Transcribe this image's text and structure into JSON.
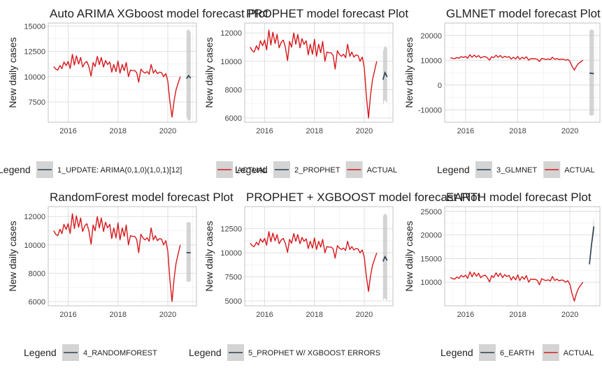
{
  "panels": [
    {
      "title": "Auto ARIMA XGboost model forecast Plot",
      "ylabel": "New daily cases",
      "xticks": [
        "2016",
        "2018",
        "2020"
      ],
      "yticks": [
        7500,
        10000,
        12500,
        15000
      ],
      "yrange": [
        5500,
        15300
      ],
      "legend": {
        "title": "Legend",
        "items": [
          "1_UPDATE: ARIMA(0,1,0)(1,0,1)[12]",
          "ACTUAL"
        ]
      },
      "forecast": {
        "x": [
          2020.75,
          2020.83,
          2020.92
        ],
        "y": [
          9800,
          10100,
          9850
        ],
        "lo": [
          6000,
          5600,
          5800
        ],
        "hi": [
          14500,
          14700,
          14400
        ]
      }
    },
    {
      "title": "PROPHET model forecast Plot",
      "ylabel": "New daily cases",
      "xticks": [
        "2016",
        "2018",
        "2020"
      ],
      "yticks": [
        6000,
        8000,
        10000,
        12000
      ],
      "yrange": [
        5700,
        12700
      ],
      "legend": {
        "title": "Legend",
        "items": [
          "2_PROPHET",
          "ACTUAL"
        ]
      },
      "forecast": {
        "x": [
          2020.75,
          2020.83,
          2020.92
        ],
        "y": [
          8700,
          9200,
          8900
        ],
        "lo": [
          6900,
          7300,
          7000
        ],
        "hi": [
          10700,
          11100,
          10900
        ]
      }
    },
    {
      "title": "GLMNET model forecast Plot",
      "ylabel": "New daily cases",
      "xticks": [
        "2016",
        "2018",
        "2020"
      ],
      "yticks": [
        -10000,
        0,
        10000,
        20000
      ],
      "yrange": [
        -15000,
        25000
      ],
      "legend": {
        "title": "Legend",
        "items": [
          "3_GLMNET",
          "ACTUAL"
        ]
      },
      "forecast": {
        "x": [
          2020.75,
          2020.83,
          2020.92
        ],
        "y": [
          4700,
          4800,
          4500
        ],
        "lo": [
          -12000,
          -12500,
          -12000
        ],
        "hi": [
          22000,
          22500,
          22000
        ]
      }
    },
    {
      "title": "RandomForest model forecast Plot",
      "ylabel": "New daily cases",
      "xticks": [
        "2016",
        "2018",
        "2020"
      ],
      "yticks": [
        6000,
        8000,
        10000,
        12000
      ],
      "yrange": [
        5700,
        12700
      ],
      "legend": {
        "title": "Legend",
        "items": [
          "4_RANDOMFOREST"
        ]
      },
      "forecast": {
        "x": [
          2020.75,
          2020.83,
          2020.92
        ],
        "y": [
          9450,
          9450,
          9450
        ],
        "lo": [
          7400,
          7400,
          7400
        ],
        "hi": [
          11600,
          11600,
          11600
        ]
      }
    },
    {
      "title": "PROPHET + XGBOOST model forecast Plot",
      "ylabel": "New daily cases",
      "xticks": [
        "2016",
        "2018",
        "2020"
      ],
      "yticks": [
        5000,
        7500,
        10000,
        12500
      ],
      "yrange": [
        4500,
        14800
      ],
      "legend": {
        "title": "Legend",
        "items": [
          "5_PROPHET W/ XGBOOST ERRORS"
        ]
      },
      "forecast": {
        "x": [
          2020.75,
          2020.83,
          2020.92
        ],
        "y": [
          9100,
          9600,
          9200
        ],
        "lo": [
          5100,
          5300,
          5000
        ],
        "hi": [
          13800,
          14100,
          13900
        ]
      }
    },
    {
      "title": "EARTH model forecast Plot",
      "ylabel": "New daily cases",
      "xticks": [
        "2016",
        "2018",
        "2020"
      ],
      "yticks": [
        10000,
        15000,
        20000,
        25000
      ],
      "yrange": [
        5000,
        26000
      ],
      "legend": {
        "title": "Legend",
        "items": [
          "6_EARTH",
          "ACTUAL"
        ]
      },
      "forecast": {
        "x": [
          2020.75,
          2020.83,
          2020.92
        ],
        "y": [
          13800,
          18000,
          21800
        ],
        "lo": [
          13000,
          17200,
          20500
        ],
        "hi": [
          14600,
          19000,
          24000
        ]
      }
    }
  ],
  "chart_data": [
    {
      "type": "line",
      "title": "Auto ARIMA XGboost model forecast Plot",
      "xlabel": "",
      "ylabel": "New daily cases",
      "xlim": [
        2015.2,
        2021.15
      ],
      "ylim": [
        5500,
        15300
      ],
      "series": [
        {
          "name": "ACTUAL",
          "color": "#d7191c"
        },
        {
          "name": "1_UPDATE: ARIMA(0,1,0)(1,0,1)[12]",
          "color": "#2c3e50",
          "x": [
            2020.75,
            2020.83,
            2020.92
          ],
          "values": [
            9800,
            10100,
            9850
          ]
        }
      ],
      "grid": true,
      "legend": "bottom"
    },
    {
      "type": "line",
      "title": "PROPHET model forecast Plot",
      "xlabel": "",
      "ylabel": "New daily cases",
      "xlim": [
        2015.2,
        2021.15
      ],
      "ylim": [
        5700,
        12700
      ],
      "series": [
        {
          "name": "ACTUAL",
          "color": "#d7191c"
        },
        {
          "name": "2_PROPHET",
          "color": "#2c3e50",
          "x": [
            2020.75,
            2020.83,
            2020.92
          ],
          "values": [
            8700,
            9200,
            8900
          ]
        }
      ],
      "grid": true,
      "legend": "bottom"
    },
    {
      "type": "line",
      "title": "GLMNET model forecast Plot",
      "xlabel": "",
      "ylabel": "New daily cases",
      "xlim": [
        2015.2,
        2021.15
      ],
      "ylim": [
        -15000,
        25000
      ],
      "series": [
        {
          "name": "ACTUAL",
          "color": "#d7191c"
        },
        {
          "name": "3_GLMNET",
          "color": "#2c3e50",
          "x": [
            2020.75,
            2020.83,
            2020.92
          ],
          "values": [
            4700,
            4800,
            4500
          ]
        }
      ],
      "grid": true,
      "legend": "bottom"
    },
    {
      "type": "line",
      "title": "RandomForest model forecast Plot",
      "xlabel": "",
      "ylabel": "New daily cases",
      "xlim": [
        2015.2,
        2021.15
      ],
      "ylim": [
        5700,
        12700
      ],
      "series": [
        {
          "name": "ACTUAL",
          "color": "#d7191c"
        },
        {
          "name": "4_RANDOMFOREST",
          "color": "#2c3e50",
          "x": [
            2020.75,
            2020.83,
            2020.92
          ],
          "values": [
            9450,
            9450,
            9450
          ]
        }
      ],
      "grid": true,
      "legend": "bottom"
    },
    {
      "type": "line",
      "title": "PROPHET + XGBOOST model forecast Plot",
      "xlabel": "",
      "ylabel": "New daily cases",
      "xlim": [
        2015.2,
        2021.15
      ],
      "ylim": [
        4500,
        14800
      ],
      "series": [
        {
          "name": "ACTUAL",
          "color": "#d7191c"
        },
        {
          "name": "5_PROPHET W/ XGBOOST ERRORS",
          "color": "#2c3e50",
          "x": [
            2020.75,
            2020.83,
            2020.92
          ],
          "values": [
            9100,
            9600,
            9200
          ]
        }
      ],
      "grid": true,
      "legend": "bottom"
    },
    {
      "type": "line",
      "title": "EARTH model forecast Plot",
      "xlabel": "",
      "ylabel": "New daily cases",
      "xlim": [
        2015.2,
        2021.15
      ],
      "ylim": [
        5000,
        26000
      ],
      "series": [
        {
          "name": "ACTUAL",
          "color": "#d7191c"
        },
        {
          "name": "6_EARTH",
          "color": "#2c3e50",
          "x": [
            2020.75,
            2020.83,
            2020.92
          ],
          "values": [
            13800,
            18000,
            21800
          ]
        }
      ],
      "grid": true,
      "legend": "bottom"
    }
  ],
  "actual": {
    "x": [
      2015.42,
      2015.5,
      2015.58,
      2015.67,
      2015.75,
      2015.83,
      2015.92,
      2016.0,
      2016.08,
      2016.17,
      2016.25,
      2016.33,
      2016.42,
      2016.5,
      2016.58,
      2016.67,
      2016.75,
      2016.83,
      2016.92,
      2017.0,
      2017.08,
      2017.17,
      2017.25,
      2017.33,
      2017.42,
      2017.5,
      2017.58,
      2017.67,
      2017.75,
      2017.83,
      2017.92,
      2018.0,
      2018.08,
      2018.17,
      2018.25,
      2018.33,
      2018.42,
      2018.5,
      2018.58,
      2018.67,
      2018.75,
      2018.83,
      2018.92,
      2019.0,
      2019.08,
      2019.17,
      2019.25,
      2019.33,
      2019.42,
      2019.5,
      2019.58,
      2019.67,
      2019.75,
      2019.83,
      2019.92,
      2020.0,
      2020.08,
      2020.17,
      2020.25,
      2020.33,
      2020.42,
      2020.5,
      2020.58
    ],
    "values": [
      11000,
      10750,
      10650,
      11100,
      10800,
      11450,
      11100,
      11500,
      10800,
      12200,
      11150,
      12050,
      11250,
      11900,
      10950,
      11350,
      11500,
      11000,
      10050,
      11400,
      11000,
      12000,
      11200,
      11900,
      10950,
      11600,
      11200,
      11450,
      10450,
      11200,
      10500,
      11550,
      10350,
      11200,
      10600,
      11400,
      10000,
      10650,
      10600,
      10600,
      10400,
      9450,
      10750,
      10500,
      10350,
      10500,
      10250,
      11200,
      10350,
      10650,
      10300,
      10450,
      10400,
      10000,
      10300,
      9550,
      7600,
      6000,
      7600,
      8700,
      9400,
      10000,
      null
    ],
    "color": "#d7191c"
  },
  "colors": {
    "actual": "#d7191c",
    "forecast": "#2c3e50",
    "ribbon": "#bdbdbd",
    "grid": "#dcdcdc",
    "frame": "#bdbdbd",
    "text": "#222222",
    "tick": "#444444"
  }
}
